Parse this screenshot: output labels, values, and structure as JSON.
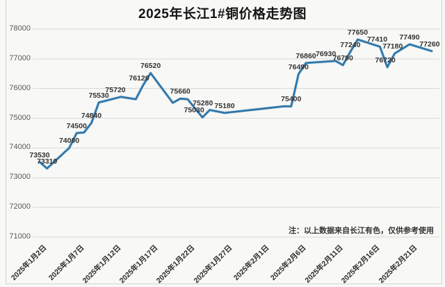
{
  "note": "注：以上数据来自长江有色，仅供参考使用",
  "chart_data": {
    "type": "line",
    "title": "2025年长江1#铜价格走势图",
    "xlabel": "",
    "ylabel": "",
    "ylim": [
      71000,
      78000
    ],
    "y_ticks": [
      78000,
      77000,
      76000,
      75000,
      74000,
      73000,
      72000,
      71000
    ],
    "grid": true,
    "legend": "none",
    "line_color": "#2e76a9",
    "line_halo_color": "#aecbde",
    "x_ticks": [
      {
        "day": 0,
        "label": "2025年1月2日"
      },
      {
        "day": 5,
        "label": "2025年1月7日"
      },
      {
        "day": 10,
        "label": "2025年1月12日"
      },
      {
        "day": 15,
        "label": "2025年1月17日"
      },
      {
        "day": 20,
        "label": "2025年1月22日"
      },
      {
        "day": 25,
        "label": "2025年1月27日"
      },
      {
        "day": 30,
        "label": "2025年2月1日"
      },
      {
        "day": 35,
        "label": "2025年2月6日"
      },
      {
        "day": 40,
        "label": "2025年2月11日"
      },
      {
        "day": 45,
        "label": "2025年2月16日"
      },
      {
        "day": 50,
        "label": "2025年2月21日"
      }
    ],
    "points": [
      {
        "day": 0,
        "value": 73530,
        "labeled": true
      },
      {
        "day": 1,
        "value": 73310,
        "labeled": true
      },
      {
        "day": 4,
        "value": 74000,
        "labeled": true
      },
      {
        "day": 5,
        "value": 74500,
        "labeled": true
      },
      {
        "day": 6,
        "value": 74520,
        "labeled": false
      },
      {
        "day": 7,
        "value": 74840,
        "labeled": true
      },
      {
        "day": 8,
        "value": 75530,
        "labeled": true
      },
      {
        "day": 11,
        "value": 75720,
        "labeled": true,
        "dx": -8
      },
      {
        "day": 13,
        "value": 75640,
        "labeled": false
      },
      {
        "day": 14,
        "value": 76120,
        "labeled": true,
        "dx": -6
      },
      {
        "day": 15,
        "value": 76520,
        "labeled": true
      },
      {
        "day": 18,
        "value": 75520,
        "labeled": false
      },
      {
        "day": 19,
        "value": 75660,
        "labeled": true
      },
      {
        "day": 20,
        "value": 75640,
        "labeled": false
      },
      {
        "day": 22,
        "value": 75030,
        "labeled": true,
        "dx": -12
      },
      {
        "day": 23,
        "value": 75280,
        "labeled": true,
        "dx": -10
      },
      {
        "day": 25,
        "value": 75180,
        "labeled": true
      },
      {
        "day": 33,
        "value": 75400,
        "labeled": false
      },
      {
        "day": 34,
        "value": 75400,
        "labeled": true
      },
      {
        "day": 35,
        "value": 76490,
        "labeled": true
      },
      {
        "day": 36,
        "value": 76860,
        "labeled": true
      },
      {
        "day": 40,
        "value": 76930,
        "labeled": true,
        "dx": -14
      },
      {
        "day": 41,
        "value": 76790,
        "labeled": true
      },
      {
        "day": 42,
        "value": 77240,
        "labeled": true
      },
      {
        "day": 43,
        "value": 77650,
        "labeled": true
      },
      {
        "day": 46,
        "value": 77410,
        "labeled": true,
        "dx": -4
      },
      {
        "day": 47,
        "value": 76720,
        "labeled": true,
        "dx": -3
      },
      {
        "day": 48,
        "value": 77180,
        "labeled": true,
        "dx": -3
      },
      {
        "day": 50,
        "value": 77490,
        "labeled": true
      },
      {
        "day": 53,
        "value": 77260,
        "labeled": true,
        "dx": -3
      }
    ]
  }
}
